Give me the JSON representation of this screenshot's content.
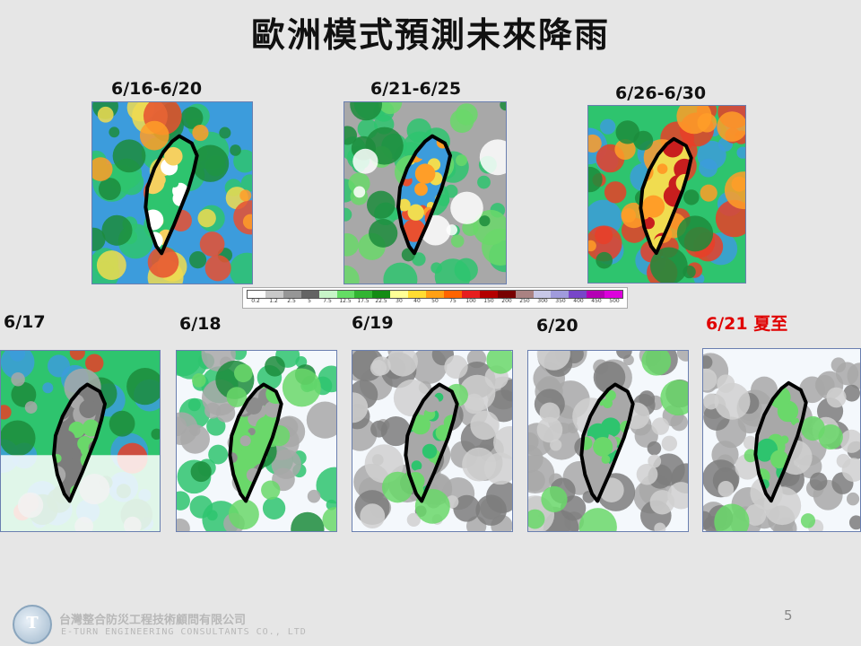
{
  "title": "歐洲模式預測未來降雨",
  "top_periods": [
    {
      "label": "6/16-6/20",
      "scheme": "wet"
    },
    {
      "label": "6/21-6/25",
      "scheme": "moderate"
    },
    {
      "label": "6/26-6/30",
      "scheme": "heavy"
    }
  ],
  "daily": [
    {
      "label": "6/17",
      "scheme": "wet_south_dry"
    },
    {
      "label": "6/18",
      "scheme": "east_green"
    },
    {
      "label": "6/19",
      "scheme": "light"
    },
    {
      "label": "6/20",
      "scheme": "light"
    },
    {
      "label": "6/21 夏至",
      "scheme": "light"
    }
  ],
  "legend": {
    "ticks": [
      "0.2",
      "1.2",
      "2.5",
      "5",
      "7.5",
      "12.5",
      "17.5",
      "22.5",
      "30",
      "40",
      "50",
      "75",
      "100",
      "150",
      "200",
      "250",
      "300",
      "350",
      "400",
      "450",
      "500"
    ],
    "colors": [
      "#ffffff",
      "#c8c8c8",
      "#969696",
      "#646464",
      "#c8f5c8",
      "#64dc64",
      "#32b432",
      "#148c14",
      "#ffff96",
      "#ffdc32",
      "#ffa014",
      "#ff6400",
      "#e61e1e",
      "#b40000",
      "#780000",
      "#aa8282",
      "#c8c8e6",
      "#a09bdc",
      "#7846c8",
      "#b400b4",
      "#dc00dc"
    ]
  },
  "colors": {
    "highlight_label": "#e00000",
    "outline": "#000000"
  },
  "page_number": "5",
  "footer": {
    "logo_text": "T",
    "company_cn": "台灣整合防災工程技術顧問有限公司",
    "company_en": "E-TURN ENGINEERING CONSULTANTS CO., LTD"
  }
}
